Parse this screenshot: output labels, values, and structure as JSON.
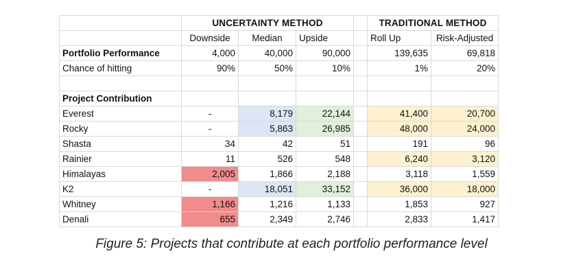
{
  "table": {
    "group_headers": {
      "uncertainty": "UNCERTAINTY METHOD",
      "traditional": "TRADITIONAL METHOD"
    },
    "columns": [
      "Downside",
      "Median",
      "Upside",
      "Roll Up",
      "Risk-Adjusted"
    ],
    "portfolio_performance": {
      "label": "Portfolio Performance",
      "values": [
        "4,000",
        "40,000",
        "90,000",
        "139,635",
        "69,818"
      ]
    },
    "chance_of_hitting": {
      "label": "Chance of hitting",
      "values": [
        "90%",
        "50%",
        "10%",
        "1%",
        "20%"
      ]
    },
    "section_label": "Project Contribution",
    "projects": [
      {
        "name": "Everest",
        "values": [
          "-",
          "8,179",
          "22,144",
          "41,400",
          "20,700"
        ]
      },
      {
        "name": "Rocky",
        "values": [
          "-",
          "5,863",
          "26,985",
          "48,000",
          "24,000"
        ]
      },
      {
        "name": "Shasta",
        "values": [
          "34",
          "42",
          "51",
          "191",
          "96"
        ]
      },
      {
        "name": "Rainier",
        "values": [
          "11",
          "526",
          "548",
          "6,240",
          "3,120"
        ]
      },
      {
        "name": "Himalayas",
        "values": [
          "2,005",
          "1,866",
          "2,188",
          "3,118",
          "1,559"
        ]
      },
      {
        "name": "K2",
        "values": [
          "-",
          "18,051",
          "33,152",
          "36,000",
          "18,000"
        ]
      },
      {
        "name": "Whitney",
        "values": [
          "1,166",
          "1,216",
          "1,133",
          "1,853",
          "927"
        ]
      },
      {
        "name": "Denali",
        "values": [
          "655",
          "2,349",
          "2,746",
          "2,833",
          "1,417"
        ]
      }
    ],
    "highlight_colors": {
      "blue": "#dce6f5",
      "green": "#e2efdb",
      "yellow": "#fdf1cf",
      "red": "#f28b8b"
    }
  },
  "caption": "Figure 5: Projects that contribute at each portfolio performance level"
}
